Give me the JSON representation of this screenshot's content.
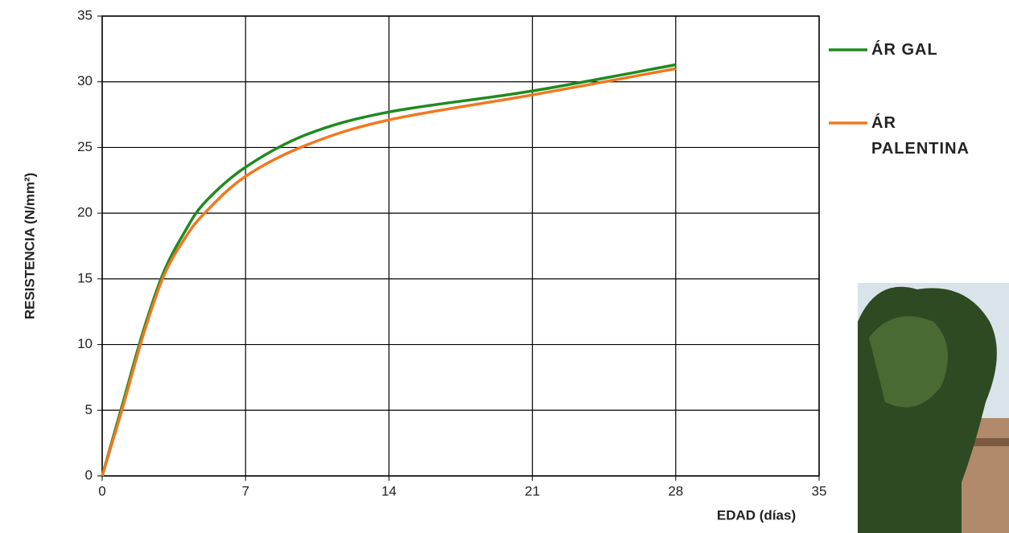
{
  "chart_data": {
    "type": "line",
    "y_label": "RESISTENCIA (N/mm²)",
    "x_label": "EDAD (días)",
    "x": [
      0,
      1,
      2,
      3,
      4,
      5,
      7,
      10,
      14,
      21,
      28
    ],
    "series": [
      {
        "name": "ÁR GAL",
        "color": "#1e8a1e",
        "values": [
          0,
          5.5,
          11,
          15.5,
          18.5,
          20.8,
          23.5,
          26,
          27.7,
          29.3,
          31.3
        ]
      },
      {
        "name": "ÁR PALENTINA",
        "color": "#f07820",
        "values": [
          0,
          5.2,
          10.7,
          15.2,
          18,
          20,
          22.8,
          25.2,
          27.1,
          29,
          31
        ]
      }
    ],
    "xlim": [
      0,
      35
    ],
    "xticks": [
      0,
      7,
      14,
      21,
      28,
      35
    ],
    "ylim": [
      0,
      35
    ],
    "yticks": [
      0,
      5,
      10,
      15,
      20,
      25,
      30,
      35
    ],
    "grid": true
  }
}
